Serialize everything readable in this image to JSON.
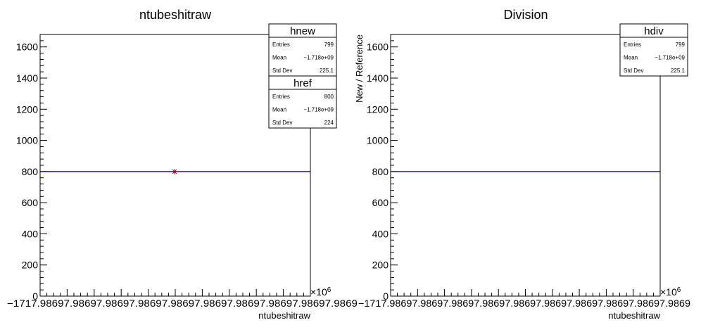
{
  "chart_data": [
    {
      "type": "line",
      "title": "ntubeshitraw",
      "xlabel": "ntubeshitraw",
      "ylabel": "",
      "x_multiplier_label": "×10",
      "x_multiplier_exp": "6",
      "ylim": [
        0,
        1680
      ],
      "yticks": [
        0,
        200,
        400,
        600,
        800,
        1000,
        1200,
        1400,
        1600
      ],
      "xtick_text": "−1717.98697.98697.98697.98697.98697.98697.98697.98697.98697.9869",
      "colors": {
        "hnew": "#cc0000",
        "href": "#000080"
      },
      "series": [
        {
          "name": "hnew",
          "level": 799,
          "color": "#cc0000"
        },
        {
          "name": "href",
          "level": 800,
          "color": "#000080"
        }
      ],
      "stats": [
        {
          "title": "hnew",
          "rows": [
            {
              "label": "Entries",
              "value": "799"
            },
            {
              "label": "Mean",
              "value": "−1.718e+09"
            },
            {
              "label": "Std Dev",
              "value": "225.1"
            }
          ]
        },
        {
          "title": "href",
          "rows": [
            {
              "label": "Entries",
              "value": "800"
            },
            {
              "label": "Mean",
              "value": "−1.718e+09"
            },
            {
              "label": "Std Dev",
              "value": "224"
            }
          ]
        }
      ]
    },
    {
      "type": "line",
      "title": "Division",
      "xlabel": "ntubeshitraw",
      "ylabel": "New / Reference",
      "x_multiplier_label": "×10",
      "x_multiplier_exp": "6",
      "ylim": [
        0,
        1680
      ],
      "yticks": [
        0,
        200,
        400,
        600,
        800,
        1000,
        1200,
        1400,
        1600
      ],
      "xtick_text": "−1717.98697.98697.98697.98697.98697.98697.98697.98697.98697.9869",
      "colors": {
        "hdiv": "#000080"
      },
      "series": [
        {
          "name": "hdiv",
          "level": 800,
          "color": "#000080"
        }
      ],
      "stats": [
        {
          "title": "hdiv",
          "rows": [
            {
              "label": "Entries",
              "value": "799"
            },
            {
              "label": "Mean",
              "value": "−1.718e+09"
            },
            {
              "label": "Std Dev",
              "value": "225.1"
            }
          ]
        }
      ]
    }
  ]
}
